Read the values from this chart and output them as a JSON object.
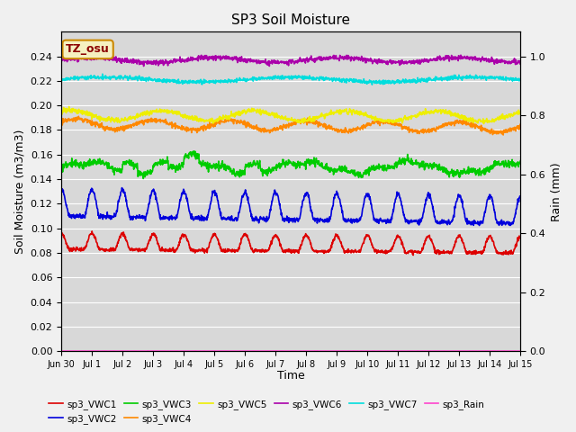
{
  "title": "SP3 Soil Moisture",
  "xlabel": "Time",
  "ylabel_left": "Soil Moisture (m3/m3)",
  "ylabel_right": "Rain (mm)",
  "ylim_left": [
    0.0,
    0.26
  ],
  "ylim_right": [
    0.0,
    1.0833
  ],
  "yticks_left": [
    0.0,
    0.02,
    0.04,
    0.06,
    0.08,
    0.1,
    0.12,
    0.14,
    0.16,
    0.18,
    0.2,
    0.22,
    0.24
  ],
  "yticks_right": [
    0.0,
    0.2,
    0.4,
    0.6,
    0.8,
    1.0
  ],
  "xtick_labels": [
    "Jun 30",
    "Jul 1",
    "Jul 2",
    "Jul 3",
    "Jul 4",
    "Jul 5",
    "Jul 6",
    "Jul 7",
    "Jul 8",
    "Jul 9",
    "Jul 10",
    "Jul 11",
    "Jul 12",
    "Jul 13",
    "Jul 14",
    "Jul 15"
  ],
  "days": 15,
  "n_points": 1440,
  "colors": {
    "sp3_VWC1": "#dd0000",
    "sp3_VWC2": "#0000dd",
    "sp3_VWC3": "#00cc00",
    "sp3_VWC4": "#ff8800",
    "sp3_VWC5": "#eeee00",
    "sp3_VWC6": "#aa00aa",
    "sp3_VWC7": "#00dddd",
    "sp3_Rain": "#ff44cc"
  },
  "legend_row1": [
    "sp3_VWC1",
    "sp3_VWC2",
    "sp3_VWC3",
    "sp3_VWC4",
    "sp3_VWC5",
    "sp3_VWC6"
  ],
  "legend_row2": [
    "sp3_VWC7",
    "sp3_Rain"
  ],
  "annotation_text": "TZ_osu",
  "bg_color": "#d8d8d8",
  "linewidth": 1.2
}
